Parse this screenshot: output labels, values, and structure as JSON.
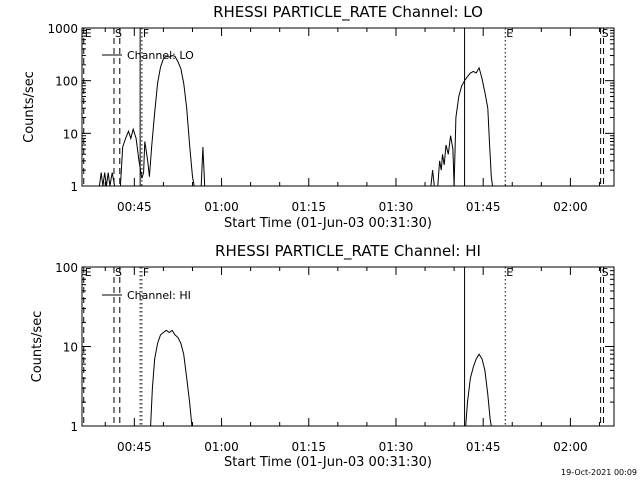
{
  "footer": {
    "timestamp": "19-Oct-2021 00:09"
  },
  "chart_data": [
    {
      "type": "line",
      "title": "RHESSI PARTICLE_RATE Channel: LO",
      "xlabel": "Start Time (01-Jun-03 00:31:30)",
      "ylabel": "Counts/sec",
      "yscale": "log",
      "ylim": [
        1,
        1000
      ],
      "xlim_minutes": [
        36.0,
        127.5
      ],
      "xticks": [
        {
          "label": "00:45",
          "minute": 45
        },
        {
          "label": "01:00",
          "minute": 60
        },
        {
          "label": "01:15",
          "minute": 75
        },
        {
          "label": "01:30",
          "minute": 90
        },
        {
          "label": "01:45",
          "minute": 105
        },
        {
          "label": "02:00",
          "minute": 120
        }
      ],
      "yticks": [
        {
          "label": "1",
          "value": 1
        },
        {
          "label": "10",
          "value": 10
        },
        {
          "label": "100",
          "value": 100
        },
        {
          "label": "1000",
          "value": 1000
        }
      ],
      "legend": {
        "label": "Channel: LO",
        "placement": "top-left"
      },
      "markers": [
        {
          "flag": "E",
          "minute": 36.3,
          "style": "dashed"
        },
        {
          "flag": "S",
          "minute": 41.5,
          "style": "dashed"
        },
        {
          "flag": "",
          "minute": 42.5,
          "style": "dashed"
        },
        {
          "flag": "F",
          "minute": 46.3,
          "style": "dotted"
        },
        {
          "flag": "",
          "minute": 46.0,
          "style": "solid"
        },
        {
          "flag": "",
          "minute": 101.8,
          "style": "solid"
        },
        {
          "flag": "E",
          "minute": 108.8,
          "style": "dotted"
        },
        {
          "flag": "S",
          "minute": 125.2,
          "style": "dashed"
        },
        {
          "flag": "",
          "minute": 125.7,
          "style": "dashed"
        }
      ],
      "series": [
        {
          "name": "Channel: LO",
          "segments": [
            [
              [
                39.0,
                1
              ],
              [
                39.3,
                1.8
              ],
              [
                39.6,
                1
              ],
              [
                39.9,
                1.8
              ],
              [
                40.2,
                1
              ],
              [
                40.5,
                1.8
              ],
              [
                40.8,
                1
              ],
              [
                41.2,
                1.8
              ],
              [
                41.6,
                1
              ]
            ],
            [
              [
                42.6,
                1
              ],
              [
                43.0,
                5.5
              ],
              [
                43.5,
                8
              ],
              [
                44.0,
                11
              ],
              [
                44.4,
                8
              ],
              [
                44.8,
                12
              ],
              [
                45.3,
                8
              ],
              [
                45.8,
                3
              ],
              [
                46.3,
                1.4
              ],
              [
                46.6,
                1.8
              ],
              [
                46.8,
                7
              ],
              [
                47.0,
                5
              ],
              [
                47.3,
                3
              ],
              [
                47.6,
                1.5
              ],
              [
                48.0,
                6
              ],
              [
                48.5,
                25
              ],
              [
                49.0,
                90
              ],
              [
                49.5,
                180
              ],
              [
                50.0,
                260
              ],
              [
                50.5,
                290
              ],
              [
                51.0,
                280
              ],
              [
                51.5,
                300
              ],
              [
                52.0,
                290
              ],
              [
                52.5,
                230
              ],
              [
                53.0,
                170
              ],
              [
                53.5,
                90
              ],
              [
                54.0,
                30
              ],
              [
                54.5,
                6
              ],
              [
                55.0,
                1.5
              ],
              [
                55.3,
                1
              ]
            ],
            [
              [
                56.5,
                1
              ],
              [
                56.8,
                5.5
              ],
              [
                57.1,
                1
              ]
            ],
            [
              [
                96.0,
                1
              ],
              [
                96.3,
                2
              ],
              [
                96.6,
                1
              ]
            ],
            [
              [
                97.2,
                1
              ],
              [
                97.5,
                3
              ],
              [
                97.8,
                2
              ],
              [
                98.0,
                4
              ],
              [
                98.3,
                2.5
              ],
              [
                98.6,
                6
              ],
              [
                99.0,
                4
              ],
              [
                99.4,
                9
              ],
              [
                99.8,
                5
              ],
              [
                100.0,
                1
              ],
              [
                100.3,
                20
              ],
              [
                100.8,
                50
              ],
              [
                101.3,
                80
              ],
              [
                101.8,
                100
              ],
              [
                102.3,
                120
              ],
              [
                102.8,
                140
              ],
              [
                103.3,
                150
              ],
              [
                103.8,
                140
              ],
              [
                104.3,
                175
              ],
              [
                104.8,
                110
              ],
              [
                105.3,
                60
              ],
              [
                105.8,
                30
              ],
              [
                106.1,
                6
              ],
              [
                106.4,
                1.5
              ],
              [
                106.6,
                1
              ]
            ]
          ]
        }
      ]
    },
    {
      "type": "line",
      "title": "RHESSI PARTICLE_RATE Channel: HI",
      "xlabel": "Start Time (01-Jun-03 00:31:30)",
      "ylabel": "Counts/sec",
      "yscale": "log",
      "ylim": [
        1,
        100
      ],
      "xlim_minutes": [
        36.0,
        127.5
      ],
      "xticks": [
        {
          "label": "00:45",
          "minute": 45
        },
        {
          "label": "01:00",
          "minute": 60
        },
        {
          "label": "01:15",
          "minute": 75
        },
        {
          "label": "01:30",
          "minute": 90
        },
        {
          "label": "01:45",
          "minute": 105
        },
        {
          "label": "02:00",
          "minute": 120
        }
      ],
      "yticks": [
        {
          "label": "1",
          "value": 1
        },
        {
          "label": "10",
          "value": 10
        },
        {
          "label": "100",
          "value": 100
        }
      ],
      "legend": {
        "label": "Channel: HI",
        "placement": "top-left"
      },
      "markers": [
        {
          "flag": "E",
          "minute": 36.3,
          "style": "dashed"
        },
        {
          "flag": "S",
          "minute": 41.5,
          "style": "dashed"
        },
        {
          "flag": "",
          "minute": 42.5,
          "style": "dashed"
        },
        {
          "flag": "F",
          "minute": 46.3,
          "style": "dotted"
        },
        {
          "flag": "",
          "minute": 46.0,
          "style": "dotted"
        },
        {
          "flag": "",
          "minute": 101.8,
          "style": "solid"
        },
        {
          "flag": "E",
          "minute": 108.8,
          "style": "dotted"
        },
        {
          "flag": "S",
          "minute": 125.2,
          "style": "dashed"
        },
        {
          "flag": "",
          "minute": 125.7,
          "style": "dashed"
        }
      ],
      "series": [
        {
          "name": "Channel: HI",
          "segments": [
            [
              [
                47.8,
                1
              ],
              [
                48.1,
                3
              ],
              [
                48.5,
                7
              ],
              [
                49.0,
                11
              ],
              [
                49.5,
                14
              ],
              [
                50.0,
                15
              ],
              [
                50.5,
                16
              ],
              [
                51.0,
                15
              ],
              [
                51.5,
                16
              ],
              [
                52.0,
                14
              ],
              [
                52.5,
                13
              ],
              [
                53.0,
                11
              ],
              [
                53.5,
                8
              ],
              [
                54.0,
                4
              ],
              [
                54.5,
                2
              ],
              [
                54.9,
                1
              ]
            ],
            [
              [
                102.0,
                1
              ],
              [
                102.3,
                2
              ],
              [
                102.8,
                4
              ],
              [
                103.3,
                5.5
              ],
              [
                103.8,
                7
              ],
              [
                104.3,
                8
              ],
              [
                104.8,
                7
              ],
              [
                105.3,
                5
              ],
              [
                105.8,
                2.5
              ],
              [
                106.2,
                1.2
              ],
              [
                106.4,
                1
              ]
            ]
          ]
        }
      ]
    }
  ]
}
